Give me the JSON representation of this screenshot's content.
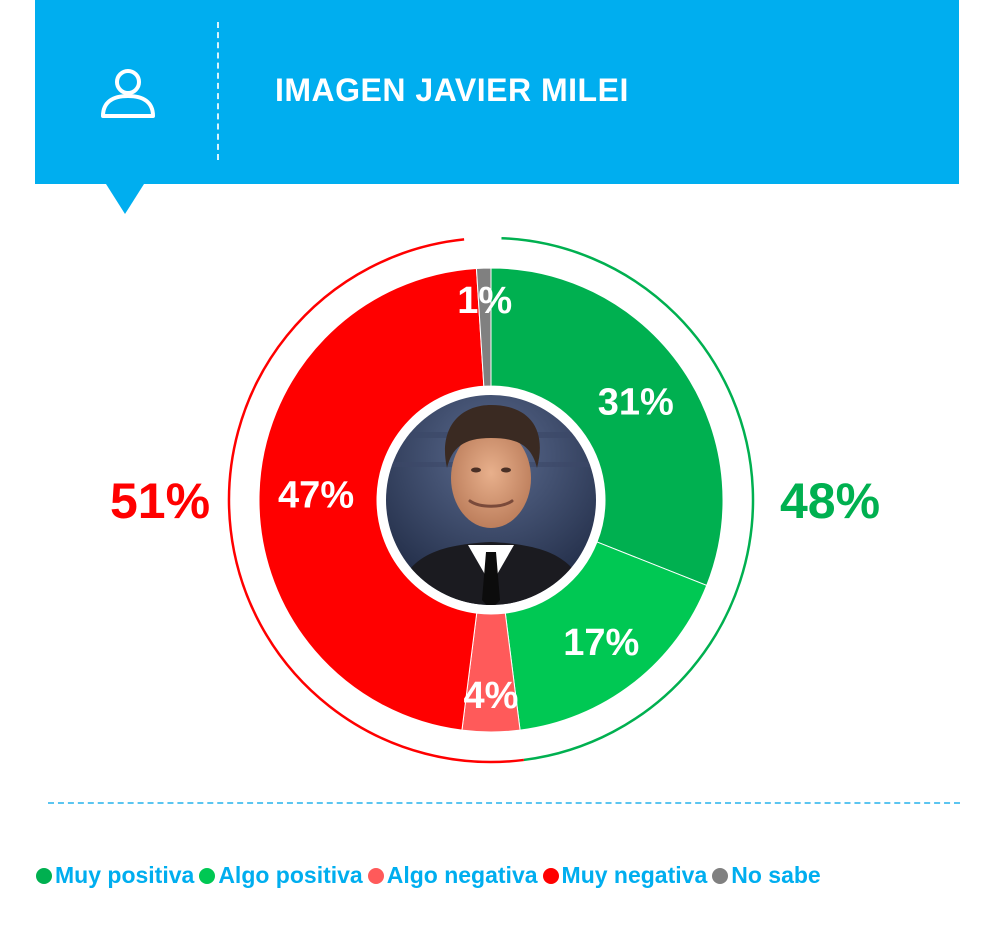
{
  "header": {
    "title": "IMAGEN JAVIER MILEI",
    "icon": "person-icon",
    "background_color": "#00aeef"
  },
  "chart_data": {
    "type": "pie",
    "style": "donut",
    "title": "IMAGEN JAVIER MILEI",
    "center": "portrait photo of Javier Milei",
    "slices": [
      {
        "name": "Muy positiva",
        "value": 31,
        "label": "31%",
        "color": "#00b050"
      },
      {
        "name": "Algo positiva",
        "value": 17,
        "label": "17%",
        "color": "#00c853"
      },
      {
        "name": "Algo negativa",
        "value": 4,
        "label": "4%",
        "color": "#ff5a5a"
      },
      {
        "name": "Muy negativa",
        "value": 47,
        "label": "47%",
        "color": "#ff0000"
      },
      {
        "name": "No sabe",
        "value": 1,
        "label": "1%",
        "color": "#808080"
      }
    ],
    "totals": [
      {
        "name": "positive",
        "value": 48,
        "label": "48%",
        "color": "#00b050"
      },
      {
        "name": "negative",
        "value": 51,
        "label": "51%",
        "color": "#ff0000"
      }
    ],
    "legend_position": "bottom"
  },
  "legend": [
    {
      "label": "Muy positiva",
      "color": "#00b050"
    },
    {
      "label": "Algo positiva",
      "color": "#00c853"
    },
    {
      "label": "Algo negativa",
      "color": "#ff5a5a"
    },
    {
      "label": "Muy negativa",
      "color": "#ff0000"
    },
    {
      "label": "No sabe",
      "color": "#808080"
    }
  ]
}
